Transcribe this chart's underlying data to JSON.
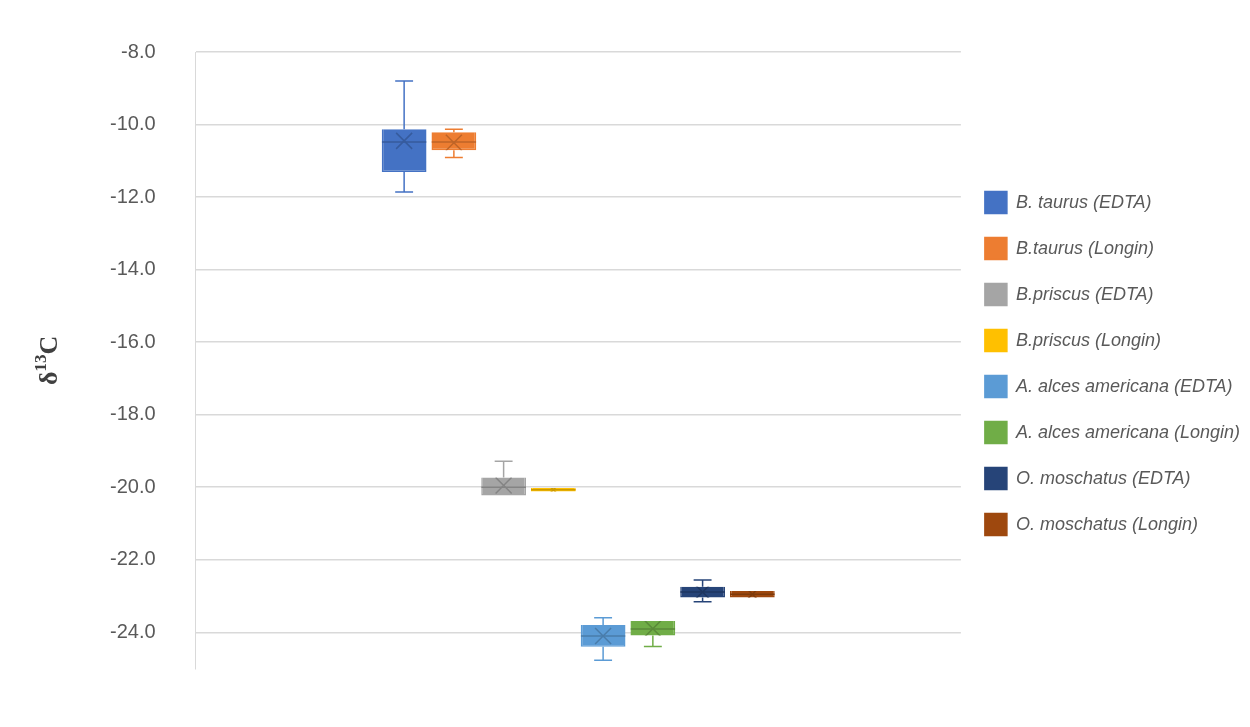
{
  "chart_data": {
    "type": "box",
    "ylabel": "δ$^{13}$C",
    "categories": [
      null
    ],
    "ylim": [
      -25,
      -8
    ],
    "yticks": [
      {
        "value": -8,
        "label": "-8.0"
      },
      {
        "value": -10,
        "label": "-10.0"
      },
      {
        "value": -12,
        "label": "-12.0"
      },
      {
        "value": -14,
        "label": "-14.0"
      },
      {
        "value": -16,
        "label": "-16.0"
      },
      {
        "value": -18,
        "label": "-18.0"
      },
      {
        "value": -20,
        "label": "-20.0"
      },
      {
        "value": -22,
        "label": "-22.0"
      },
      {
        "value": -24,
        "label": "-24.0"
      }
    ],
    "grid": "y",
    "legend": "right",
    "marker": "cross",
    "series": [
      {
        "name": "B. taurus (EDTA)",
        "color": "#4472c4",
        "boxes": [
          {
            "low": -11.86,
            "q1": -11.31,
            "median": -10.48,
            "q3": -10.13,
            "high": -8.8,
            "mean": -10.45
          }
        ]
      },
      {
        "name": "B.taurus (Longin)",
        "color": "#ed7d31",
        "boxes": [
          {
            "low": -10.91,
            "q1": -10.71,
            "median": -10.48,
            "q3": -10.21,
            "high": -10.13,
            "mean": -10.5
          }
        ]
      },
      {
        "name": "B.priscus (EDTA)",
        "color": "#a5a5a5",
        "boxes": [
          {
            "low": -20.23,
            "q1": -20.23,
            "median": -20.0,
            "q3": -19.73,
            "high": -19.28,
            "mean": -19.95
          }
        ]
      },
      {
        "name": "B.priscus (Longin)",
        "color": "#ffc000",
        "boxes": [
          {
            "low": -20.12,
            "q1": -20.12,
            "median": -20.07,
            "q3": -20.02,
            "high": -20.02,
            "mean": -20.07
          }
        ]
      },
      {
        "name": "A. alces americana (EDTA)",
        "color": "#5b9bd5",
        "boxes": [
          {
            "low": -24.77,
            "q1": -24.4,
            "median": -24.1,
            "q3": -23.8,
            "high": -23.6,
            "mean": -24.1
          }
        ]
      },
      {
        "name": "A. alces americana (Longin)",
        "color": "#70ad47",
        "boxes": [
          {
            "low": -24.39,
            "q1": -24.09,
            "median": -23.91,
            "q3": -23.69,
            "high": -23.69,
            "mean": -23.9
          }
        ]
      },
      {
        "name": "O. moschatus (EDTA)",
        "color": "#264478",
        "boxes": [
          {
            "low": -23.16,
            "q1": -23.04,
            "median": -22.89,
            "q3": -22.74,
            "high": -22.56,
            "mean": -22.89
          }
        ]
      },
      {
        "name": "O. moschatus (Longin)",
        "color": "#9e480e",
        "boxes": [
          {
            "low": -23.04,
            "q1": -23.04,
            "median": -22.95,
            "q3": -22.86,
            "high": -22.86,
            "mean": -22.95
          }
        ]
      }
    ]
  }
}
